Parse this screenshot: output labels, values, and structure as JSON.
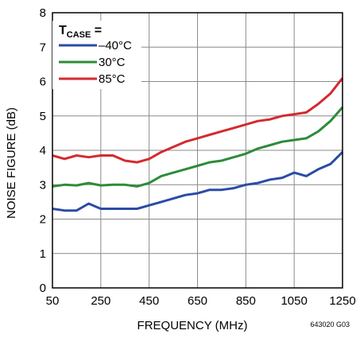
{
  "chart_data": {
    "type": "line",
    "xlabel": "FREQUENCY (MHz)",
    "ylabel": "NOISE FIGURE (dB)",
    "xlim": [
      50,
      1250
    ],
    "ylim": [
      0,
      8
    ],
    "xticks": [
      50,
      250,
      450,
      650,
      850,
      1050,
      1250
    ],
    "yticks": [
      0,
      1,
      2,
      3,
      4,
      5,
      6,
      7,
      8
    ],
    "grid": true,
    "legend": {
      "title_main": "T",
      "title_sub": "CASE",
      "title_suffix": " =",
      "position": "top-left"
    },
    "footnote": "643020 G03",
    "x": [
      50,
      100,
      150,
      200,
      250,
      300,
      350,
      400,
      450,
      500,
      550,
      600,
      650,
      700,
      750,
      800,
      850,
      900,
      950,
      1000,
      1050,
      1100,
      1150,
      1200,
      1250
    ],
    "series": [
      {
        "name": "–40°C",
        "color": "#2b4ba6",
        "values": [
          2.3,
          2.25,
          2.25,
          2.45,
          2.3,
          2.3,
          2.3,
          2.3,
          2.4,
          2.5,
          2.6,
          2.7,
          2.75,
          2.85,
          2.85,
          2.9,
          3.0,
          3.05,
          3.15,
          3.2,
          3.35,
          3.25,
          3.45,
          3.6,
          3.95
        ]
      },
      {
        "name": "30°C",
        "color": "#2e8b3a",
        "values": [
          2.95,
          3.0,
          2.98,
          3.05,
          2.98,
          3.0,
          3.0,
          2.95,
          3.05,
          3.25,
          3.35,
          3.45,
          3.55,
          3.65,
          3.7,
          3.8,
          3.9,
          4.05,
          4.15,
          4.25,
          4.3,
          4.35,
          4.55,
          4.85,
          5.25
        ]
      },
      {
        "name": "85°C",
        "color": "#d42a2f",
        "values": [
          3.85,
          3.75,
          3.85,
          3.8,
          3.85,
          3.85,
          3.7,
          3.65,
          3.75,
          3.95,
          4.1,
          4.25,
          4.35,
          4.45,
          4.55,
          4.65,
          4.75,
          4.85,
          4.9,
          5.0,
          5.05,
          5.1,
          5.35,
          5.65,
          6.1
        ]
      }
    ]
  }
}
